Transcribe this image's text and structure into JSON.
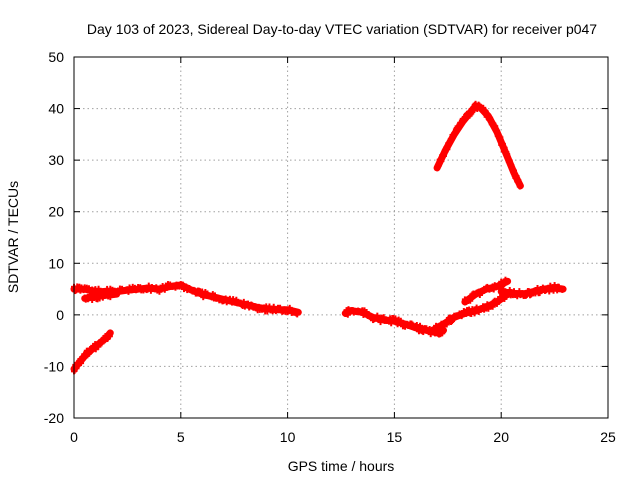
{
  "chart_data": {
    "type": "line",
    "title": "Day 103 of 2023, Sidereal Day-to-day VTEC variation (SDTVAR) for receiver p047",
    "xlabel": "GPS time / hours",
    "ylabel": "SDTVAR / TECUs",
    "xlim": [
      0,
      25
    ],
    "ylim": [
      -20,
      50
    ],
    "xticks": [
      0,
      5,
      10,
      15,
      20,
      25
    ],
    "yticks": [
      -20,
      -10,
      0,
      10,
      20,
      30,
      40,
      50
    ],
    "xtick_labels": [
      "0",
      "5",
      "10",
      "15",
      "20",
      "25"
    ],
    "ytick_labels": [
      "-20",
      "-10",
      "0",
      "10",
      "20",
      "30",
      "40",
      "50"
    ],
    "grid": true,
    "color": "#ff0000",
    "series": [
      {
        "name": "segment-1",
        "x": [
          0.0,
          0.3,
          0.6,
          0.9,
          1.2,
          1.5,
          1.7
        ],
        "y": [
          -10.5,
          -9.0,
          -7.5,
          -6.5,
          -5.5,
          -4.5,
          -3.5
        ]
      },
      {
        "name": "segment-2",
        "x": [
          0.0,
          0.5,
          1.0,
          1.5,
          2.0,
          2.5,
          3.0,
          3.5,
          4.0,
          4.5,
          5.0,
          5.5,
          6.0,
          6.5,
          7.0,
          7.5,
          8.0,
          8.5,
          9.0,
          9.5,
          10.0,
          10.5
        ],
        "y": [
          5.0,
          5.0,
          4.5,
          4.5,
          4.5,
          4.8,
          5.0,
          5.2,
          5.0,
          5.5,
          5.8,
          4.8,
          4.0,
          3.5,
          3.0,
          2.5,
          2.0,
          1.5,
          1.2,
          1.0,
          1.0,
          0.5
        ]
      },
      {
        "name": "segment-3",
        "x": [
          0.5,
          1.0,
          1.5,
          2.0
        ],
        "y": [
          3.2,
          3.5,
          3.8,
          4.0
        ]
      },
      {
        "name": "segment-4",
        "x": [
          12.7,
          13.0,
          13.5,
          14.0,
          14.5,
          15.0,
          15.5,
          16.0,
          16.5,
          17.0,
          17.3
        ],
        "y": [
          0.3,
          0.8,
          0.5,
          -0.5,
          -1.0,
          -1.2,
          -1.8,
          -2.5,
          -3.0,
          -3.5,
          -3.0
        ]
      },
      {
        "name": "segment-5",
        "x": [
          16.8,
          17.3,
          17.8,
          18.3,
          18.8,
          19.3,
          19.8,
          20.3
        ],
        "y": [
          -3.0,
          -1.8,
          -0.5,
          0.3,
          0.8,
          1.5,
          2.5,
          4.0
        ]
      },
      {
        "name": "segment-6",
        "x": [
          18.3,
          18.8,
          19.3,
          19.8,
          20.3
        ],
        "y": [
          2.5,
          4.0,
          5.0,
          5.5,
          6.5
        ]
      },
      {
        "name": "segment-7",
        "x": [
          20.0,
          20.5,
          21.0,
          21.5,
          22.0,
          22.5,
          22.9
        ],
        "y": [
          4.5,
          4.2,
          4.0,
          4.5,
          5.0,
          5.2,
          5.0
        ]
      },
      {
        "name": "segment-8",
        "x": [
          17.0,
          17.4,
          17.8,
          18.2,
          18.6,
          18.8,
          19.0,
          19.4,
          19.8,
          20.2,
          20.6,
          20.9
        ],
        "y": [
          28.5,
          32.0,
          35.0,
          37.5,
          39.5,
          40.5,
          40.3,
          38.5,
          35.5,
          31.5,
          27.5,
          25.0
        ]
      }
    ]
  }
}
